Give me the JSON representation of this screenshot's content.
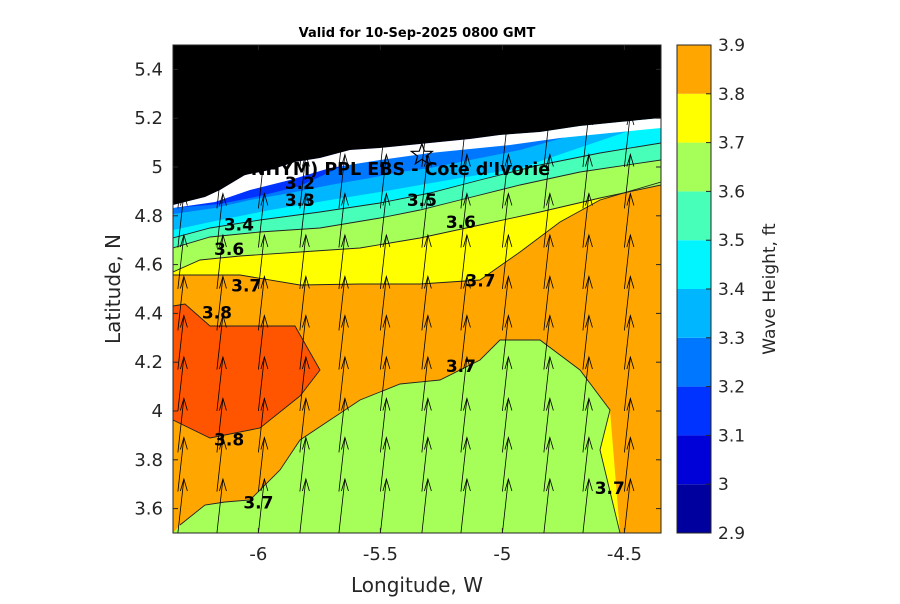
{
  "chart_data": {
    "type": "heatmap",
    "subtype": "filled-contour with wind/wave direction arrows",
    "title": "Valid for 10-Sep-2025 0800 GMT",
    "xlabel": "Longitude, W",
    "ylabel": "Latitude, N",
    "xlim": [
      -6.35,
      -4.35
    ],
    "ylim": [
      3.5,
      5.5
    ],
    "x_ticks": [
      -6,
      -5.5,
      -5,
      -4.5
    ],
    "x_tick_labels": [
      "-6",
      "-5.5",
      "-5",
      "-4.5"
    ],
    "y_ticks": [
      3.6,
      3.8,
      4.0,
      4.2,
      4.4,
      4.6,
      4.8,
      5.0,
      5.2,
      5.4
    ],
    "y_tick_labels": [
      "3.6",
      "3.8",
      "4",
      "4.2",
      "4.4",
      "4.6",
      "4.8",
      "5",
      "5.2",
      "5.4"
    ],
    "colorbar": {
      "label": "Wave Height, ft",
      "levels": [
        2.9,
        3.0,
        3.1,
        3.2,
        3.3,
        3.4,
        3.5,
        3.6,
        3.7,
        3.8,
        3.9
      ],
      "tick_labels": [
        "2.9",
        "3",
        "3.1",
        "3.2",
        "3.3",
        "3.4",
        "3.5",
        "3.6",
        "3.7",
        "3.8",
        "3.9"
      ],
      "colors": [
        "#00009f",
        "#0000d8",
        "#0033ff",
        "#0077ff",
        "#00b6ff",
        "#00f5ff",
        "#47ffb8",
        "#a6ff58",
        "#ffff00",
        "#ffa600",
        "#ff5400"
      ]
    },
    "land_color": "#000000",
    "coast_color": "#ffffff",
    "arrow_color": "#000000",
    "grid": false,
    "site": {
      "label": "(ONHYM) PPL EBS  - Cote d'Ivorie",
      "lon": -5.33,
      "lat": 5.05,
      "marker": "star"
    },
    "contour_labels": [
      {
        "text": "3.2",
        "lon": -5.83,
        "lat": 4.93
      },
      {
        "text": "3.3",
        "lon": -5.83,
        "lat": 4.86
      },
      {
        "text": "3.4",
        "lon": -6.08,
        "lat": 4.76
      },
      {
        "text": "3.5",
        "lon": -5.33,
        "lat": 4.86
      },
      {
        "text": "3.6",
        "lon": -6.12,
        "lat": 4.66
      },
      {
        "text": "3.6",
        "lon": -5.17,
        "lat": 4.77
      },
      {
        "text": "3.7",
        "lon": -6.05,
        "lat": 4.51
      },
      {
        "text": "3.7",
        "lon": -5.09,
        "lat": 4.53
      },
      {
        "text": "3.7",
        "lon": -5.17,
        "lat": 4.18
      },
      {
        "text": "3.7",
        "lon": -4.56,
        "lat": 3.68
      },
      {
        "text": "3.7",
        "lon": -6.0,
        "lat": 3.62
      },
      {
        "text": "3.8",
        "lon": -6.17,
        "lat": 4.4
      },
      {
        "text": "3.8",
        "lon": -6.12,
        "lat": 3.88
      }
    ],
    "wave_direction_arrows": {
      "lon": [
        -6.33,
        -6.17,
        -6.0,
        -5.83,
        -5.67,
        -5.5,
        -5.33,
        -5.17,
        -5.0,
        -4.83,
        -4.67,
        -4.5
      ],
      "lat": [
        3.5,
        3.67,
        3.83,
        4.0,
        4.17,
        4.33,
        4.5,
        4.67,
        4.83,
        5.0,
        5.17
      ],
      "direction": "toward north (northward, slight eastward tilt)"
    }
  }
}
